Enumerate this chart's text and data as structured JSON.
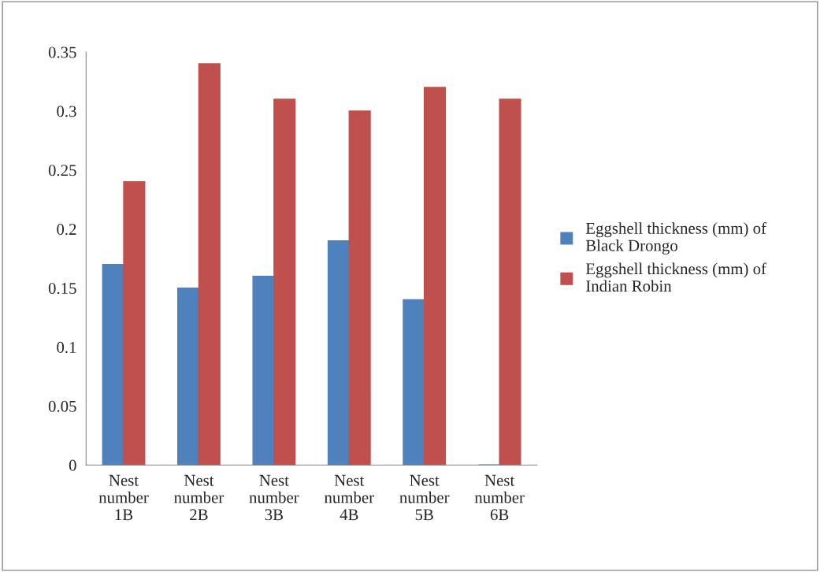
{
  "chart_data": {
    "type": "bar",
    "categories": [
      "Nest\nnumber\n1B",
      "Nest\nnumber\n2B",
      "Nest\nnumber\n3B",
      "Nest\nnumber\n4B",
      "Nest\nnumber\n5B",
      "Nest\nnumber\n6B"
    ],
    "series": [
      {
        "name": "Eggshell thickness (mm) of\nBlack Drongo",
        "color": "#4f81bd",
        "values": [
          0.17,
          0.15,
          0.16,
          0.19,
          0.14,
          0
        ]
      },
      {
        "name": "Eggshell thickness (mm) of\nIndian Robin",
        "color": "#c0504d",
        "values": [
          0.24,
          0.34,
          0.31,
          0.3,
          0.32,
          0.31
        ]
      }
    ],
    "ylim": [
      0,
      0.35
    ],
    "yticks": [
      0,
      0.05,
      0.1,
      0.15,
      0.2,
      0.25,
      0.3,
      0.35
    ],
    "grid": false,
    "legend": "right"
  }
}
